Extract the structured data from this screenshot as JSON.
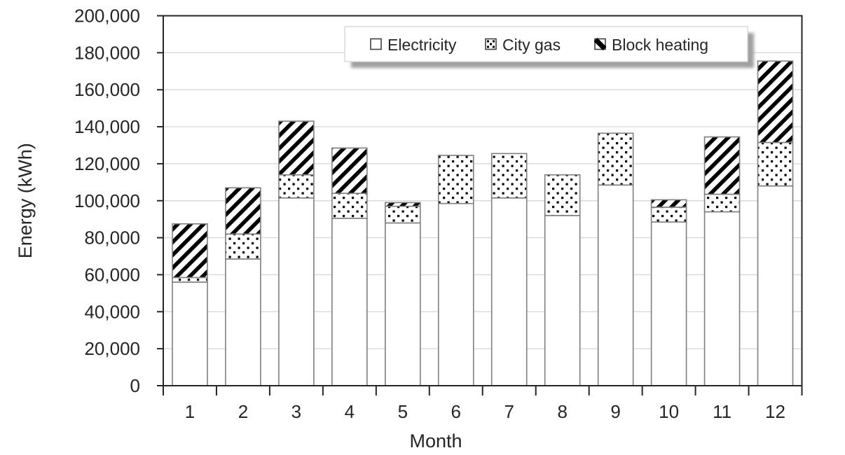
{
  "chart_data": {
    "type": "bar",
    "stacked": true,
    "title": "",
    "xlabel": "Month",
    "ylabel": "Energy (kWh)",
    "ylim": [
      0,
      200000
    ],
    "ytick_step": 20000,
    "ytick_labels": [
      "0",
      "20,000",
      "40,000",
      "60,000",
      "80,000",
      "100,000",
      "120,000",
      "140,000",
      "160,000",
      "180,000",
      "200,000"
    ],
    "grid": "horizontal-light-gray",
    "plot_border": true,
    "legend_position": "top-inside-with-shadow",
    "categories": [
      "1",
      "2",
      "3",
      "4",
      "5",
      "6",
      "7",
      "8",
      "9",
      "10",
      "11",
      "12"
    ],
    "series": [
      {
        "name": "Electricity",
        "pattern": "solid-white",
        "values": [
          56000,
          68500,
          101500,
          90500,
          88000,
          98500,
          101500,
          92000,
          108500,
          88500,
          94000,
          108000
        ]
      },
      {
        "name": "City gas",
        "pattern": "black-dots",
        "values": [
          2500,
          13500,
          12500,
          13500,
          9000,
          26000,
          24000,
          22000,
          28000,
          8000,
          9500,
          23500
        ]
      },
      {
        "name": "Block heating",
        "pattern": "black-diagonal-stripes",
        "values": [
          29000,
          25000,
          29000,
          24500,
          2000,
          0,
          0,
          0,
          0,
          4000,
          31000,
          44000
        ]
      }
    ]
  },
  "legend": {
    "items": [
      {
        "label": "Electricity",
        "swatch": "empty-square"
      },
      {
        "label": "City gas",
        "swatch": "dotted-square"
      },
      {
        "label": "Block heating",
        "swatch": "diagonal-square"
      }
    ]
  },
  "colors": {
    "background": "#ffffff",
    "gridline": "#d9d9d9",
    "axis": "#262626",
    "text": "#262626",
    "bar_border": "#7f7f7f",
    "pattern_ink": "#000000",
    "legend_border": "#d9d9d9",
    "legend_shadow": "#a0a0a0"
  }
}
